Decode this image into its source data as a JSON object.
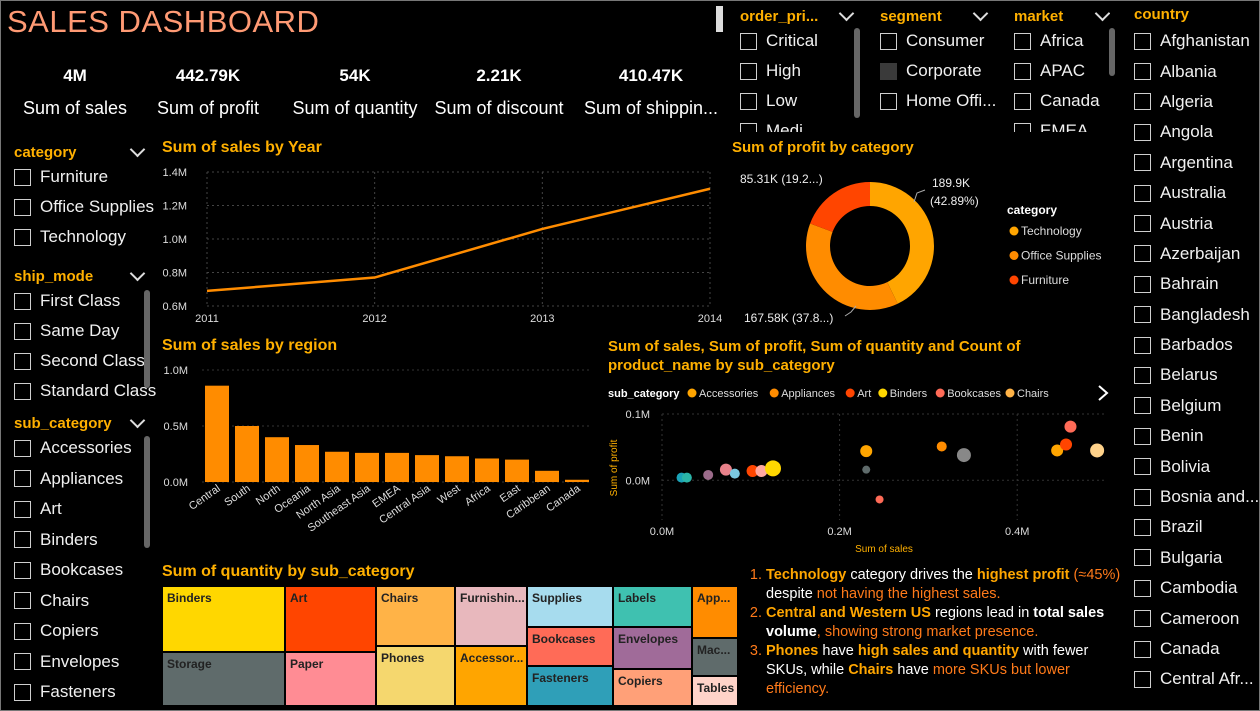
{
  "title": "SALES DASHBOARD",
  "kpis": [
    {
      "value": "4M",
      "label": "Sum of sales"
    },
    {
      "value": "442.79K",
      "label": "Sum of profit"
    },
    {
      "value": "54K",
      "label": "Sum of quantity"
    },
    {
      "value": "2.21K",
      "label": "Sum of discount"
    },
    {
      "value": "410.47K",
      "label": "Sum of shippin..."
    }
  ],
  "slicers": {
    "category": {
      "title": "category",
      "items": [
        "Furniture",
        "Office Supplies",
        "Technology"
      ]
    },
    "ship_mode": {
      "title": "ship_mode",
      "items": [
        "First Class",
        "Same Day",
        "Second Class",
        "Standard Class"
      ]
    },
    "sub_category": {
      "title": "sub_category",
      "items": [
        "Accessories",
        "Appliances",
        "Art",
        "Binders",
        "Bookcases",
        "Chairs",
        "Copiers",
        "Envelopes",
        "Fasteners"
      ]
    },
    "order_priority": {
      "title": "order_pri...",
      "items": [
        "Critical",
        "High",
        "Low",
        "Medi..."
      ]
    },
    "segment": {
      "title": "segment",
      "items": [
        "Consumer",
        "Corporate",
        "Home Offi..."
      ]
    },
    "market": {
      "title": "market",
      "items": [
        "Africa",
        "APAC",
        "Canada",
        "EMEA"
      ]
    },
    "country": {
      "title": "country",
      "items": [
        "Afghanistan",
        "Albania",
        "Algeria",
        "Angola",
        "Argentina",
        "Australia",
        "Austria",
        "Azerbaijan",
        "Bahrain",
        "Bangladesh",
        "Barbados",
        "Belarus",
        "Belgium",
        "Benin",
        "Bolivia",
        "Bosnia and...",
        "Brazil",
        "Bulgaria",
        "Cambodia",
        "Cameroon",
        "Canada",
        "Central Afr..."
      ]
    }
  },
  "line_chart": {
    "title": "Sum of sales by Year",
    "chart_data": {
      "type": "line",
      "x": [
        "2011",
        "2012",
        "2013",
        "2014"
      ],
      "values": [
        0.69,
        0.77,
        1.06,
        1.3
      ],
      "y_ticks": [
        "1.4M",
        "1.2M",
        "1.0M",
        "0.8M",
        "0.6M"
      ],
      "ylim": [
        0.6,
        1.4
      ],
      "color": "#ff8c00"
    }
  },
  "donut_chart": {
    "title": "Sum of profit by category",
    "legend_title": "category",
    "chart_data": {
      "type": "pie",
      "categories": [
        "Technology",
        "Office Supplies",
        "Furniture"
      ],
      "values": [
        189.9,
        167.58,
        85.31
      ],
      "labels": [
        "189.9K",
        "(42.89%)",
        "167.58K (37.8...)",
        "85.31K (19.2...)"
      ],
      "colors": [
        "#ffa500",
        "#ff8c00",
        "#ff4500"
      ]
    }
  },
  "bar_chart": {
    "title": "Sum of sales by region",
    "chart_data": {
      "type": "bar",
      "categories": [
        "Central",
        "South",
        "North",
        "Oceania",
        "North Asia",
        "Southeast Asia",
        "EMEA",
        "Central Asia",
        "West",
        "Africa",
        "East",
        "Caribbean",
        "Canada"
      ],
      "values": [
        0.86,
        0.5,
        0.4,
        0.33,
        0.27,
        0.26,
        0.26,
        0.24,
        0.23,
        0.21,
        0.2,
        0.1,
        0.02
      ],
      "y_ticks": [
        "1.0M",
        "0.5M",
        "0.0M"
      ],
      "ylim": [
        0,
        1.0
      ],
      "color": "#ff8c00"
    }
  },
  "scatter_chart": {
    "title_line1": "Sum of sales, Sum of profit, Sum of quantity and Count of",
    "title_line2": "product_name by sub_category",
    "legend_title": "sub_category",
    "legend": [
      {
        "name": "Accessories",
        "color": "#ffa500"
      },
      {
        "name": "Appliances",
        "color": "#ff8c00"
      },
      {
        "name": "Art",
        "color": "#ff4500"
      },
      {
        "name": "Binders",
        "color": "#ffd700"
      },
      {
        "name": "Bookcases",
        "color": "#ff6b57"
      },
      {
        "name": "Chairs",
        "color": "#ffb347"
      }
    ],
    "xlabel": "Sum of sales",
    "ylabel": "Sum of profit",
    "x_ticks": [
      "0.0M",
      "0.2M",
      "0.4M"
    ],
    "y_ticks": [
      "0.1M",
      "0.0M"
    ],
    "chart_data": {
      "type": "scatter",
      "xlim": [
        0,
        0.5
      ],
      "ylim": [
        -0.06,
        0.1
      ],
      "points": [
        {
          "x": 0.022,
          "y": 0.004,
          "r": 5,
          "color": "#1aa3b8"
        },
        {
          "x": 0.028,
          "y": 0.004,
          "r": 5,
          "color": "#2bb5a8"
        },
        {
          "x": 0.052,
          "y": 0.008,
          "r": 5,
          "color": "#9b6b8a"
        },
        {
          "x": 0.072,
          "y": 0.016,
          "r": 6,
          "color": "#e8818a"
        },
        {
          "x": 0.082,
          "y": 0.01,
          "r": 5,
          "color": "#7bc8e0"
        },
        {
          "x": 0.102,
          "y": 0.014,
          "r": 6,
          "color": "#ff4500"
        },
        {
          "x": 0.112,
          "y": 0.014,
          "r": 6,
          "color": "#ffa8a0"
        },
        {
          "x": 0.125,
          "y": 0.018,
          "r": 8,
          "color": "#ffd700"
        },
        {
          "x": 0.23,
          "y": 0.044,
          "r": 6,
          "color": "#ffa500"
        },
        {
          "x": 0.23,
          "y": 0.016,
          "r": 4,
          "color": "#5f6b6b"
        },
        {
          "x": 0.245,
          "y": -0.029,
          "r": 4,
          "color": "#ff6b57"
        },
        {
          "x": 0.315,
          "y": 0.051,
          "r": 5,
          "color": "#ff8c00"
        },
        {
          "x": 0.34,
          "y": 0.038,
          "r": 7,
          "color": "#888888"
        },
        {
          "x": 0.445,
          "y": 0.045,
          "r": 6,
          "color": "#ffa500"
        },
        {
          "x": 0.455,
          "y": 0.054,
          "r": 6,
          "color": "#ff4500"
        },
        {
          "x": 0.46,
          "y": 0.081,
          "r": 6,
          "color": "#ff6b57"
        },
        {
          "x": 0.49,
          "y": 0.045,
          "r": 7,
          "color": "#ffd28a"
        }
      ]
    }
  },
  "treemap": {
    "title": "Sum of quantity by sub_category",
    "cells": [
      {
        "label": "Binders",
        "color": "#ffd700"
      },
      {
        "label": "Storage",
        "color": "#5f6b6b"
      },
      {
        "label": "Art",
        "color": "#ff4500"
      },
      {
        "label": "Paper",
        "color": "#ff8c94"
      },
      {
        "label": "Chairs",
        "color": "#ffb347"
      },
      {
        "label": "Phones",
        "color": "#f5d76e"
      },
      {
        "label": "Furnishin...",
        "color": "#e8b8bd"
      },
      {
        "label": "Accessor...",
        "color": "#ffa500"
      },
      {
        "label": "Supplies",
        "color": "#a7dcee"
      },
      {
        "label": "Bookcases",
        "color": "#ff6b57"
      },
      {
        "label": "Fasteners",
        "color": "#2f9fb8"
      },
      {
        "label": "Labels",
        "color": "#3fc1b0"
      },
      {
        "label": "Envelopes",
        "color": "#a06b99"
      },
      {
        "label": "Copiers",
        "color": "#ffa078"
      },
      {
        "label": "App...",
        "color": "#ff8c00"
      },
      {
        "label": "Mac...",
        "color": "#5f6b6b"
      },
      {
        "label": "Tables",
        "color": "#ffd3c9"
      }
    ]
  },
  "notes": {
    "n1": {
      "a": "Technology",
      "b": " category drives the ",
      "c": "highest profit",
      "d": " (≈45%)",
      "e": " despite ",
      "f": "not having the highest sales."
    },
    "n2": {
      "a": "Central and Western US",
      "b": " regions lead in ",
      "c": "total sales volume",
      "d": ", showing strong market presence."
    },
    "n3": {
      "a": "Phones",
      "b": " have ",
      "c": "high sales and quantity",
      "d": " with fewer SKUs, while ",
      "e": "Chairs",
      "f": " have ",
      "g": "more SKUs but lower efficiency."
    }
  }
}
